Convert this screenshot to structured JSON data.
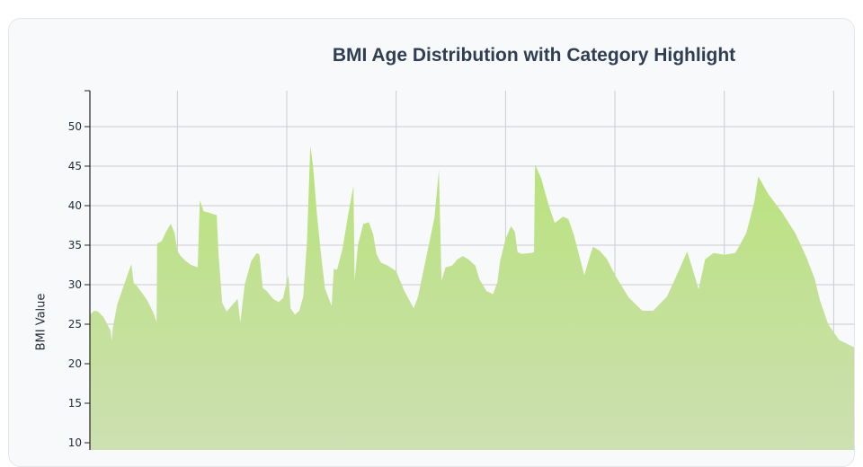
{
  "chart_data": {
    "type": "area",
    "title": "BMI Age Distribution with Category Highlight",
    "ylabel": "BMI Value",
    "xlabel": "",
    "ylim": [
      10,
      55
    ],
    "yticks": [
      10,
      15,
      20,
      25,
      30,
      35,
      40,
      45,
      50
    ],
    "xlim": [
      0,
      143
    ],
    "x_gridlines": [
      16,
      36,
      56,
      76,
      96,
      116,
      136
    ],
    "grid": true,
    "colors": {
      "fill_top": "#b8e27a",
      "fill_bottom": "#cde0b2"
    },
    "series": [
      {
        "values": [
          [
            0,
            26.2
          ],
          [
            0.8,
            26.7
          ],
          [
            1.5,
            26.6
          ],
          [
            2.5,
            25.9
          ],
          [
            3.3,
            24.8
          ],
          [
            3.8,
            24.2
          ],
          [
            4,
            22.9
          ],
          [
            4.2,
            24.6
          ],
          [
            5,
            27.5
          ],
          [
            6,
            29.5
          ],
          [
            7,
            31.5
          ],
          [
            7.6,
            32.6
          ],
          [
            8,
            30.2
          ],
          [
            8.4,
            30.0
          ],
          [
            9.5,
            29.0
          ],
          [
            10.5,
            28.0
          ],
          [
            11.5,
            26.6
          ],
          [
            12.2,
            25.3
          ],
          [
            12.3,
            35.2
          ],
          [
            13.1,
            35.5
          ],
          [
            14,
            36.8
          ],
          [
            14.8,
            37.7
          ],
          [
            15.5,
            36.5
          ],
          [
            16,
            34.3
          ],
          [
            16.5,
            33.7
          ],
          [
            17.5,
            33.0
          ],
          [
            18.5,
            32.5
          ],
          [
            19.7,
            32.2
          ],
          [
            20.1,
            40.7
          ],
          [
            20.8,
            39.3
          ],
          [
            21.8,
            39.1
          ],
          [
            22.7,
            38.9
          ],
          [
            23.2,
            38.8
          ],
          [
            23.5,
            34.0
          ],
          [
            24.2,
            27.7
          ],
          [
            25,
            26.6
          ],
          [
            26,
            27.4
          ],
          [
            27,
            28.2
          ],
          [
            27.5,
            25.2
          ],
          [
            28.3,
            30.0
          ],
          [
            29.5,
            33.0
          ],
          [
            30.5,
            34.0
          ],
          [
            31,
            33.8
          ],
          [
            31.6,
            29.6
          ],
          [
            32.3,
            29.2
          ],
          [
            33.5,
            28.2
          ],
          [
            34.5,
            27.8
          ],
          [
            35.3,
            28.3
          ],
          [
            36.3,
            31.2
          ],
          [
            36.7,
            27.0
          ],
          [
            37.5,
            26.2
          ],
          [
            38.3,
            26.7
          ],
          [
            39,
            28.5
          ],
          [
            39.7,
            35.5
          ],
          [
            40.3,
            47.6
          ],
          [
            40.8,
            45.0
          ],
          [
            41.5,
            39.0
          ],
          [
            42.2,
            34.2
          ],
          [
            43,
            29.5
          ],
          [
            44.2,
            27.3
          ],
          [
            44.6,
            32.0
          ],
          [
            45.2,
            31.9
          ],
          [
            46.2,
            34.6
          ],
          [
            47.2,
            38.8
          ],
          [
            48.2,
            42.5
          ],
          [
            48.4,
            30.5
          ],
          [
            49,
            35.0
          ],
          [
            50,
            37.7
          ],
          [
            51,
            37.9
          ],
          [
            51.8,
            36.4
          ],
          [
            52.4,
            33.9
          ],
          [
            53.2,
            32.8
          ],
          [
            54.5,
            32.4
          ],
          [
            56,
            31.7
          ],
          [
            57.5,
            29.2
          ],
          [
            59.2,
            27.0
          ],
          [
            60,
            28.5
          ],
          [
            61.5,
            33.5
          ],
          [
            63,
            38.5
          ],
          [
            63.8,
            44.5
          ],
          [
            64.3,
            30.5
          ],
          [
            65,
            32.2
          ],
          [
            66.2,
            32.4
          ],
          [
            67.2,
            33.2
          ],
          [
            68.2,
            33.6
          ],
          [
            69.2,
            33.2
          ],
          [
            70.5,
            32.4
          ],
          [
            71.2,
            30.7
          ],
          [
            72.5,
            29.2
          ],
          [
            73.7,
            28.8
          ],
          [
            74.5,
            30.3
          ],
          [
            75,
            33.0
          ],
          [
            76,
            35.8
          ],
          [
            77,
            37.4
          ],
          [
            77.7,
            36.7
          ],
          [
            78.2,
            34.1
          ],
          [
            79,
            33.9
          ],
          [
            80.5,
            34.0
          ],
          [
            81.2,
            34.1
          ],
          [
            81.4,
            45.2
          ],
          [
            82.5,
            43.5
          ],
          [
            84,
            39.8
          ],
          [
            85,
            37.8
          ],
          [
            86.5,
            38.6
          ],
          [
            87.5,
            38.3
          ],
          [
            88.5,
            36.3
          ],
          [
            89.5,
            33.6
          ],
          [
            90.4,
            31.2
          ],
          [
            91.3,
            33.4
          ],
          [
            92,
            34.8
          ],
          [
            93.2,
            34.3
          ],
          [
            94.5,
            33.3
          ],
          [
            96.2,
            31.0
          ],
          [
            98.5,
            28.4
          ],
          [
            101,
            26.7
          ],
          [
            103,
            26.7
          ],
          [
            105.5,
            28.5
          ],
          [
            107.5,
            31.5
          ],
          [
            109.2,
            34.2
          ],
          [
            110.2,
            32.0
          ],
          [
            111.3,
            29.4
          ],
          [
            112.5,
            33.2
          ],
          [
            114,
            34.0
          ],
          [
            116,
            33.8
          ],
          [
            118,
            34.0
          ],
          [
            120,
            36.5
          ],
          [
            121.5,
            40.5
          ],
          [
            122.2,
            43.7
          ],
          [
            124,
            41.5
          ],
          [
            126.5,
            39.2
          ],
          [
            129,
            36.5
          ],
          [
            131,
            33.5
          ],
          [
            132.5,
            30.8
          ],
          [
            133.5,
            28.0
          ],
          [
            135,
            25.0
          ],
          [
            137,
            23.0
          ],
          [
            140,
            22.0
          ],
          [
            143,
            21.5
          ]
        ]
      }
    ]
  }
}
